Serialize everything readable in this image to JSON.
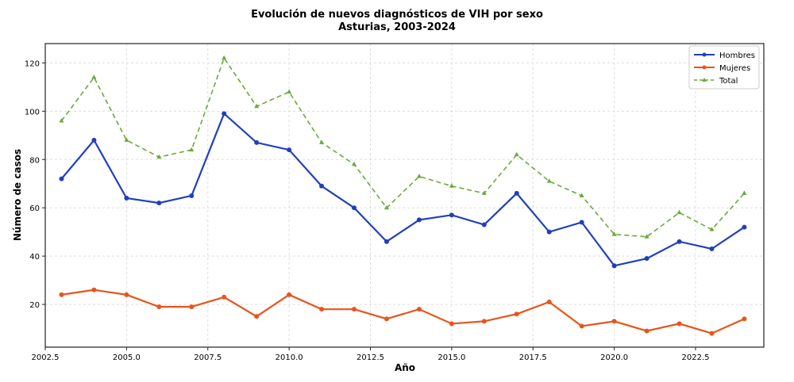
{
  "chart_data": {
    "type": "line",
    "title": "Evolución de nuevos diagnósticos de VIH por sexo",
    "subtitle": "Asturias, 2003-2024",
    "xlabel": "Año",
    "ylabel": "Número de casos",
    "xlim": [
      2002.5,
      2024.6
    ],
    "ylim": [
      2.3,
      128
    ],
    "xticks": [
      "2002.5",
      "2005.0",
      "2007.5",
      "2010.0",
      "2012.5",
      "2015.0",
      "2017.5",
      "2020.0",
      "2022.5"
    ],
    "yticks": [
      "20",
      "40",
      "60",
      "80",
      "100",
      "120"
    ],
    "grid": true,
    "legend_position": "top-right",
    "x": [
      2003,
      2004,
      2005,
      2006,
      2007,
      2008,
      2009,
      2010,
      2011,
      2012,
      2013,
      2014,
      2015,
      2016,
      2017,
      2018,
      2019,
      2020,
      2021,
      2022,
      2023,
      2024
    ],
    "series": [
      {
        "name": "Hombres",
        "color": "#1f3fbf",
        "marker": "circle",
        "dash": false,
        "values": [
          72,
          88,
          64,
          62,
          65,
          99,
          87,
          84,
          69,
          60,
          46,
          55,
          57,
          53,
          66,
          50,
          54,
          36,
          39,
          46,
          43,
          52
        ]
      },
      {
        "name": "Mujeres",
        "color": "#e8541a",
        "marker": "circle",
        "dash": false,
        "values": [
          24,
          26,
          24,
          19,
          19,
          23,
          15,
          24,
          18,
          18,
          14,
          18,
          12,
          13,
          16,
          21,
          11,
          13,
          9,
          12,
          8,
          14
        ]
      },
      {
        "name": "Total",
        "color": "#6aaa3a",
        "marker": "triangle",
        "dash": true,
        "values": [
          96,
          114,
          88,
          81,
          84,
          122,
          102,
          108,
          87,
          78,
          60,
          73,
          69,
          66,
          82,
          71,
          65,
          49,
          48,
          58,
          51,
          66
        ]
      }
    ]
  }
}
